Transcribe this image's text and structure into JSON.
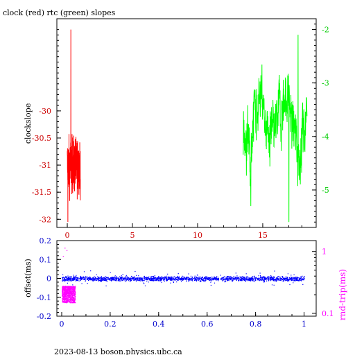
{
  "title": "clock (red) rtc (green) slopes",
  "footer": "2023-08-13 boson.physics.ubc.ca",
  "colors": {
    "axis": "#000000",
    "left_ticks_top": "#cc0000",
    "right_ticks_top": "#00cc00",
    "left_ticks_bottom": "#0000cc",
    "right_ticks_bottom": "#ff00ff",
    "clock_series": "#ff0000",
    "rtc_series": "#00ff00",
    "offset_series": "#0000ff",
    "rndtrip_series": "#ff00ff"
  },
  "chart_data": [
    {
      "type": "line",
      "title": "clock (red) rtc (green) slopes",
      "ylabel": "clockslope",
      "xlim": [
        -0.8,
        19.1
      ],
      "ylim": [
        -32.15,
        -28.3
      ],
      "y2lim": [
        -5.7,
        -1.8
      ],
      "xticks": [
        "0",
        "5",
        "10",
        "15"
      ],
      "yticks": [
        "-30",
        "-30.5",
        "-31",
        "-31.5",
        "-32"
      ],
      "y2ticks": [
        "-2",
        "-3",
        "-4",
        "-5"
      ],
      "grid": false,
      "series": [
        {
          "name": "clock",
          "axis": "left",
          "color": "#ff0000",
          "x_range": [
            0.0,
            1.0
          ],
          "y_center": -31.0,
          "y_range": [
            -32.05,
            -28.5
          ]
        },
        {
          "name": "rtc",
          "axis": "right",
          "color": "#00ff00",
          "x_range": [
            13.5,
            18.4
          ],
          "y_center": -3.7,
          "y_range": [
            -5.6,
            -2.1
          ]
        }
      ]
    },
    {
      "type": "scatter",
      "ylabel": "offset(ms)",
      "y2label": "rnd-trip(ms)",
      "xlim": [
        -0.02,
        1.05
      ],
      "ylim": [
        -0.2,
        0.2
      ],
      "y2lim": [
        0.09,
        1.5
      ],
      "y2scale": "log",
      "xticks": [
        "0",
        "0.2",
        "0.4",
        "0.6",
        "0.8",
        "1"
      ],
      "yticks": [
        "0.2",
        "0.1",
        "0",
        "-0.1",
        "-0.2"
      ],
      "y2ticks": [
        "1",
        "0.1"
      ],
      "grid": false,
      "series": [
        {
          "name": "offset",
          "axis": "left",
          "color": "#0000ff",
          "x_range": [
            0.0,
            1.0
          ],
          "y_center": 0.0,
          "y_range": [
            -0.06,
            0.06
          ]
        },
        {
          "name": "rnd-trip",
          "axis": "right",
          "color": "#ff00ff",
          "x_range": [
            0.0,
            0.055
          ],
          "y_center": 0.2,
          "y_range": [
            0.15,
            0.28
          ]
        }
      ]
    }
  ]
}
